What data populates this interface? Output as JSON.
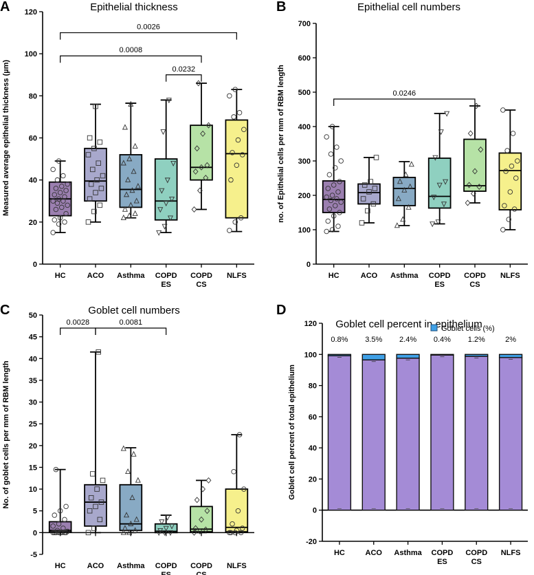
{
  "chart_data": [
    {
      "panel": "A",
      "type": "boxplot",
      "title": "Epithelial thickness",
      "ylabel": "Measured average epithelial thickness (µm)",
      "ylim": [
        0,
        120
      ],
      "yticks": [
        0,
        20,
        40,
        60,
        80,
        100,
        120
      ],
      "categories": [
        "HC",
        "ACO",
        "Asthma",
        "COPD\nES",
        "COPD\nCS",
        "NLFS"
      ],
      "colors": [
        "#9b7fb0",
        "#a8a8cc",
        "#88aac4",
        "#8fd0c0",
        "#b6e2a6",
        "#f6f08c"
      ],
      "markers": [
        "circle",
        "square",
        "triangle",
        "tri-down",
        "diamond",
        "circle"
      ],
      "boxes": [
        {
          "min": 15,
          "q1": 23,
          "median": 31,
          "q3": 39,
          "max": 49,
          "points": [
            15,
            19,
            20,
            21,
            22,
            24,
            26,
            27,
            28,
            29,
            30,
            30,
            31,
            32,
            33,
            34,
            35,
            36,
            37,
            38,
            40,
            42,
            45,
            49
          ]
        },
        {
          "min": 20,
          "q1": 30,
          "median": 39.5,
          "q3": 55,
          "max": 76,
          "points": [
            20,
            25,
            28,
            31,
            34,
            36,
            38,
            40,
            42,
            45,
            48,
            52,
            55,
            58,
            60,
            75
          ]
        },
        {
          "min": 22,
          "q1": 27,
          "median": 35.5,
          "q3": 52,
          "max": 76.5,
          "points": [
            22,
            23,
            24,
            26,
            28,
            30,
            33,
            35,
            37,
            40,
            44,
            48,
            50,
            56,
            65,
            76
          ]
        },
        {
          "min": 15,
          "q1": 21,
          "median": 30,
          "q3": 50,
          "max": 78,
          "points": [
            15,
            18,
            22,
            26,
            29,
            31,
            35,
            40,
            48,
            63,
            78
          ]
        },
        {
          "min": 26,
          "q1": 40,
          "median": 46,
          "q3": 66,
          "max": 86,
          "points": [
            26,
            35,
            41,
            44,
            46,
            47,
            55,
            62,
            66,
            86
          ]
        },
        {
          "min": 15.5,
          "q1": 22,
          "median": 52.5,
          "q3": 68.5,
          "max": 83,
          "points": [
            16,
            20,
            22,
            40,
            47,
            52,
            53,
            59,
            64,
            70,
            72,
            80,
            83
          ]
        }
      ],
      "comparisons": [
        {
          "from": 0,
          "to": 5,
          "y": 110,
          "label": "0.0026"
        },
        {
          "from": 0,
          "to": 4,
          "y": 99,
          "label": "0.0008"
        },
        {
          "from": 3,
          "to": 4,
          "y": 90,
          "label": "0.0232"
        }
      ]
    },
    {
      "panel": "B",
      "type": "boxplot",
      "title": "Epithelial cell numbers",
      "ylabel": "no. of Epithelial cells per mm of RBM length",
      "ylim": [
        0,
        700
      ],
      "yticks": [
        0,
        100,
        200,
        300,
        400,
        500,
        600,
        700
      ],
      "categories": [
        "HC",
        "ACO",
        "Asthma",
        "COPD\nES",
        "COPD\nCS",
        "NLFS"
      ],
      "colors": [
        "#9b7fb0",
        "#a8a8cc",
        "#88aac4",
        "#8fd0c0",
        "#b6e2a6",
        "#f6f08c"
      ],
      "markers": [
        "circle",
        "square",
        "triangle",
        "tri-down",
        "diamond",
        "circle"
      ],
      "boxes": [
        {
          "min": 95,
          "q1": 150,
          "median": 188,
          "q3": 242,
          "max": 400,
          "points": [
            95,
            100,
            110,
            125,
            140,
            150,
            160,
            170,
            180,
            185,
            190,
            195,
            200,
            210,
            220,
            230,
            240,
            260,
            280,
            300,
            320,
            340,
            370,
            400
          ]
        },
        {
          "min": 120,
          "q1": 175,
          "median": 208,
          "q3": 233,
          "max": 310,
          "points": [
            120,
            155,
            175,
            190,
            210,
            220,
            230,
            240,
            310
          ]
        },
        {
          "min": 112,
          "q1": 170,
          "median": 220,
          "q3": 252,
          "max": 298,
          "points": [
            112,
            130,
            165,
            190,
            215,
            225,
            240,
            260,
            290
          ]
        },
        {
          "min": 117,
          "q1": 163,
          "median": 197,
          "q3": 308,
          "max": 438,
          "points": [
            117,
            123,
            175,
            195,
            230,
            240,
            310,
            385,
            438
          ]
        },
        {
          "min": 178,
          "q1": 212,
          "median": 228,
          "q3": 363,
          "max": 460,
          "points": [
            178,
            205,
            225,
            230,
            270,
            333,
            380,
            460
          ]
        },
        {
          "min": 100,
          "q1": 158,
          "median": 272,
          "q3": 323,
          "max": 448,
          "points": [
            100,
            130,
            160,
            170,
            210,
            250,
            270,
            285,
            300,
            330,
            380,
            448
          ]
        }
      ],
      "comparisons": [
        {
          "from": 0,
          "to": 4,
          "y": 480,
          "label": "0.0246"
        }
      ]
    },
    {
      "panel": "C",
      "type": "boxplot",
      "title": "Goblet cell numbers",
      "ylabel": "No. of goblet cells per mm of RBM length",
      "ylim": [
        -5,
        50
      ],
      "yticks": [
        -5,
        0,
        5,
        10,
        15,
        20,
        25,
        30,
        35,
        40,
        45,
        50
      ],
      "categories": [
        "HC",
        "ACO",
        "Asthma",
        "COPD\nES",
        "COPD\nCS",
        "NLFS"
      ],
      "colors": [
        "#9b7fb0",
        "#a8a8cc",
        "#88aac4",
        "#8fd0c0",
        "#b6e2a6",
        "#f6f08c"
      ],
      "markers": [
        "circle",
        "square",
        "triangle",
        "tri-down",
        "diamond",
        "circle"
      ],
      "boxes": [
        {
          "min": 0,
          "q1": 0.2,
          "median": 0.5,
          "q3": 2.5,
          "max": 14.5,
          "points": [
            0,
            0,
            0,
            0,
            0,
            0,
            0,
            0,
            0.3,
            0.5,
            1,
            1.5,
            2,
            3,
            4,
            5,
            6,
            14.5
          ]
        },
        {
          "min": 0,
          "q1": 1.5,
          "median": 7,
          "q3": 11,
          "max": 41.5,
          "points": [
            0,
            1,
            3,
            5,
            6,
            7,
            8,
            10,
            12,
            13.5,
            41.5
          ]
        },
        {
          "min": 0,
          "q1": 0.5,
          "median": 2,
          "q3": 11,
          "max": 19.5,
          "points": [
            0,
            0,
            0.5,
            1,
            2,
            3,
            4,
            8,
            12,
            14,
            18,
            19.3
          ]
        },
        {
          "min": 0,
          "q1": 0,
          "median": 0.3,
          "q3": 2,
          "max": 4,
          "points": [
            0,
            0,
            0,
            0.5,
            1,
            1.5,
            2.5,
            3.5
          ]
        },
        {
          "min": 0,
          "q1": 0.2,
          "median": 0.8,
          "q3": 6,
          "max": 12,
          "points": [
            0,
            0.3,
            0.7,
            1,
            3,
            5,
            7.5,
            10,
            12
          ]
        },
        {
          "min": 0,
          "q1": 0.2,
          "median": 1.2,
          "q3": 10,
          "max": 22.5,
          "points": [
            0,
            0,
            0,
            0,
            0.5,
            1,
            2,
            5,
            10,
            14,
            22.5
          ]
        }
      ],
      "comparisons": [
        {
          "from": 0,
          "to": 1,
          "y": 47,
          "label": "0.0028"
        },
        {
          "from": 1,
          "to": 3,
          "y": 47,
          "label": "0.0081"
        }
      ]
    },
    {
      "panel": "D",
      "type": "stacked-bar",
      "title": "Goblet cell percent in epithelium",
      "ylabel": "Goblet cell percent of total epithelium",
      "ylim": [
        -20,
        120
      ],
      "yticks": [
        -20,
        0,
        20,
        40,
        60,
        80,
        100,
        120
      ],
      "categories": [
        "HC",
        "ACO",
        "Asthma",
        "COPD\nES",
        "COPD\nCS",
        "NLFS"
      ],
      "legend": "Goblet cells (%)",
      "goblet_values": [
        0.8,
        3.5,
        2.4,
        0.4,
        1.2,
        2
      ],
      "goblet_labels": [
        "0.8%",
        "3.5%",
        "2.4%",
        "0.4%",
        "1.2%",
        "2%"
      ],
      "base_color": "#a48bd6",
      "goblet_color": "#3fa0e6"
    }
  ]
}
